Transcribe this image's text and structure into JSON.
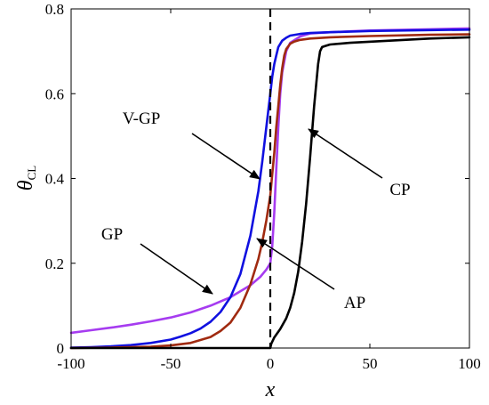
{
  "chart_data": {
    "type": "line",
    "xlabel": "x",
    "ylabel_main": "θ",
    "ylabel_sub": "CL",
    "xlim": [
      -100,
      100
    ],
    "ylim": [
      0,
      0.8
    ],
    "xticks": [
      -100,
      -50,
      0,
      50,
      100
    ],
    "xtick_labels": [
      "-100",
      "-50",
      "0",
      "50",
      "100"
    ],
    "yticks": [
      0,
      0.2,
      0.4,
      0.6,
      0.8
    ],
    "ytick_labels": [
      "0",
      "0.2",
      "0.4",
      "0.6",
      "0.8"
    ],
    "grid": false,
    "vline_x": 0,
    "series": [
      {
        "name": "GP",
        "color": "#a63cf0",
        "x": [
          -100,
          -90,
          -80,
          -70,
          -60,
          -50,
          -40,
          -30,
          -20,
          -10,
          -5,
          -2,
          0,
          1,
          2,
          3,
          4,
          5,
          6,
          8,
          10,
          15,
          20,
          30,
          40,
          50,
          60,
          80,
          100
        ],
        "y": [
          0.036,
          0.042,
          0.048,
          0.055,
          0.063,
          0.072,
          0.084,
          0.1,
          0.12,
          0.148,
          0.168,
          0.185,
          0.2,
          0.24,
          0.32,
          0.42,
          0.52,
          0.6,
          0.65,
          0.7,
          0.72,
          0.735,
          0.742,
          0.745,
          0.747,
          0.749,
          0.75,
          0.752,
          0.754
        ]
      },
      {
        "name": "V-GP",
        "color": "#1010e0",
        "x": [
          -100,
          -90,
          -80,
          -70,
          -60,
          -50,
          -45,
          -40,
          -35,
          -30,
          -25,
          -20,
          -15,
          -10,
          -6,
          -4,
          -2,
          0,
          1,
          2,
          3,
          4,
          6,
          8,
          10,
          15,
          20,
          30,
          50,
          80,
          100
        ],
        "y": [
          0.001,
          0.002,
          0.004,
          0.007,
          0.012,
          0.02,
          0.027,
          0.035,
          0.046,
          0.062,
          0.085,
          0.12,
          0.175,
          0.265,
          0.37,
          0.44,
          0.52,
          0.6,
          0.64,
          0.67,
          0.69,
          0.71,
          0.725,
          0.732,
          0.737,
          0.741,
          0.743,
          0.745,
          0.748,
          0.75,
          0.751
        ]
      },
      {
        "name": "AP",
        "color": "#a02a10",
        "x": [
          -100,
          -80,
          -60,
          -50,
          -40,
          -30,
          -25,
          -20,
          -15,
          -10,
          -6,
          -4,
          -2,
          0,
          1,
          2,
          3,
          4,
          5,
          6,
          7,
          8,
          10,
          12,
          15,
          20,
          30,
          50,
          80,
          100
        ],
        "y": [
          0.0,
          0.001,
          0.003,
          0.006,
          0.012,
          0.026,
          0.04,
          0.06,
          0.095,
          0.15,
          0.21,
          0.25,
          0.3,
          0.36,
          0.41,
          0.46,
          0.52,
          0.57,
          0.62,
          0.66,
          0.69,
          0.705,
          0.718,
          0.723,
          0.727,
          0.73,
          0.733,
          0.736,
          0.739,
          0.74
        ]
      },
      {
        "name": "CP",
        "color": "#000000",
        "x": [
          -100,
          0,
          0.5,
          2,
          5,
          8,
          10,
          12,
          14,
          16,
          18,
          20,
          22,
          24,
          25,
          26,
          28,
          30,
          40,
          60,
          80,
          100
        ],
        "y": [
          0.0,
          0.0,
          0.01,
          0.025,
          0.045,
          0.07,
          0.095,
          0.13,
          0.18,
          0.25,
          0.34,
          0.45,
          0.57,
          0.67,
          0.7,
          0.71,
          0.713,
          0.716,
          0.72,
          0.725,
          0.73,
          0.733
        ]
      }
    ],
    "annotations": [
      {
        "label": "V-GP",
        "color": "#000000"
      },
      {
        "label": "GP",
        "color": "#000000"
      },
      {
        "label": "AP",
        "color": "#000000"
      },
      {
        "label": "CP",
        "color": "#000000"
      }
    ]
  }
}
